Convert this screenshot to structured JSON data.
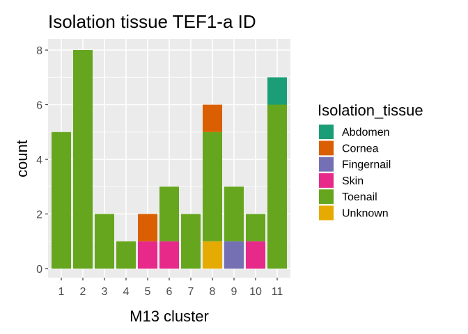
{
  "chart_data": {
    "type": "bar",
    "stacked": true,
    "title": "Isolation tissue TEF1-a ID",
    "xlabel": "M13 cluster",
    "ylabel": "count",
    "categories": [
      "1",
      "2",
      "3",
      "4",
      "5",
      "6",
      "7",
      "8",
      "9",
      "10",
      "11"
    ],
    "ylim": [
      0,
      8
    ],
    "yticks": [
      0,
      2,
      4,
      6,
      8
    ],
    "grid": true,
    "legend_title": "Isolation_tissue",
    "legend_position": "right",
    "stack_order_bottom_to_top": [
      "Unknown",
      "Skin",
      "Fingernail",
      "Toenail",
      "Cornea",
      "Abdomen"
    ],
    "series": [
      {
        "name": "Abdomen",
        "color": "#1B9E77",
        "values": [
          0,
          0,
          0,
          0,
          0,
          0,
          0,
          0,
          0,
          0,
          1
        ]
      },
      {
        "name": "Cornea",
        "color": "#D95F02",
        "values": [
          0,
          0,
          0,
          0,
          1,
          0,
          0,
          1,
          0,
          0,
          0
        ]
      },
      {
        "name": "Fingernail",
        "color": "#7570B3",
        "values": [
          0,
          0,
          0,
          0,
          0,
          0,
          0,
          0,
          1,
          0,
          0
        ]
      },
      {
        "name": "Skin",
        "color": "#E7298A",
        "values": [
          0,
          0,
          0,
          0,
          1,
          1,
          0,
          0,
          0,
          1,
          0
        ]
      },
      {
        "name": "Toenail",
        "color": "#66A61E",
        "values": [
          5,
          8,
          2,
          1,
          0,
          2,
          2,
          4,
          2,
          1,
          6
        ]
      },
      {
        "name": "Unknown",
        "color": "#E6AB02",
        "values": [
          0,
          0,
          0,
          0,
          0,
          0,
          0,
          1,
          0,
          0,
          0
        ]
      }
    ]
  }
}
